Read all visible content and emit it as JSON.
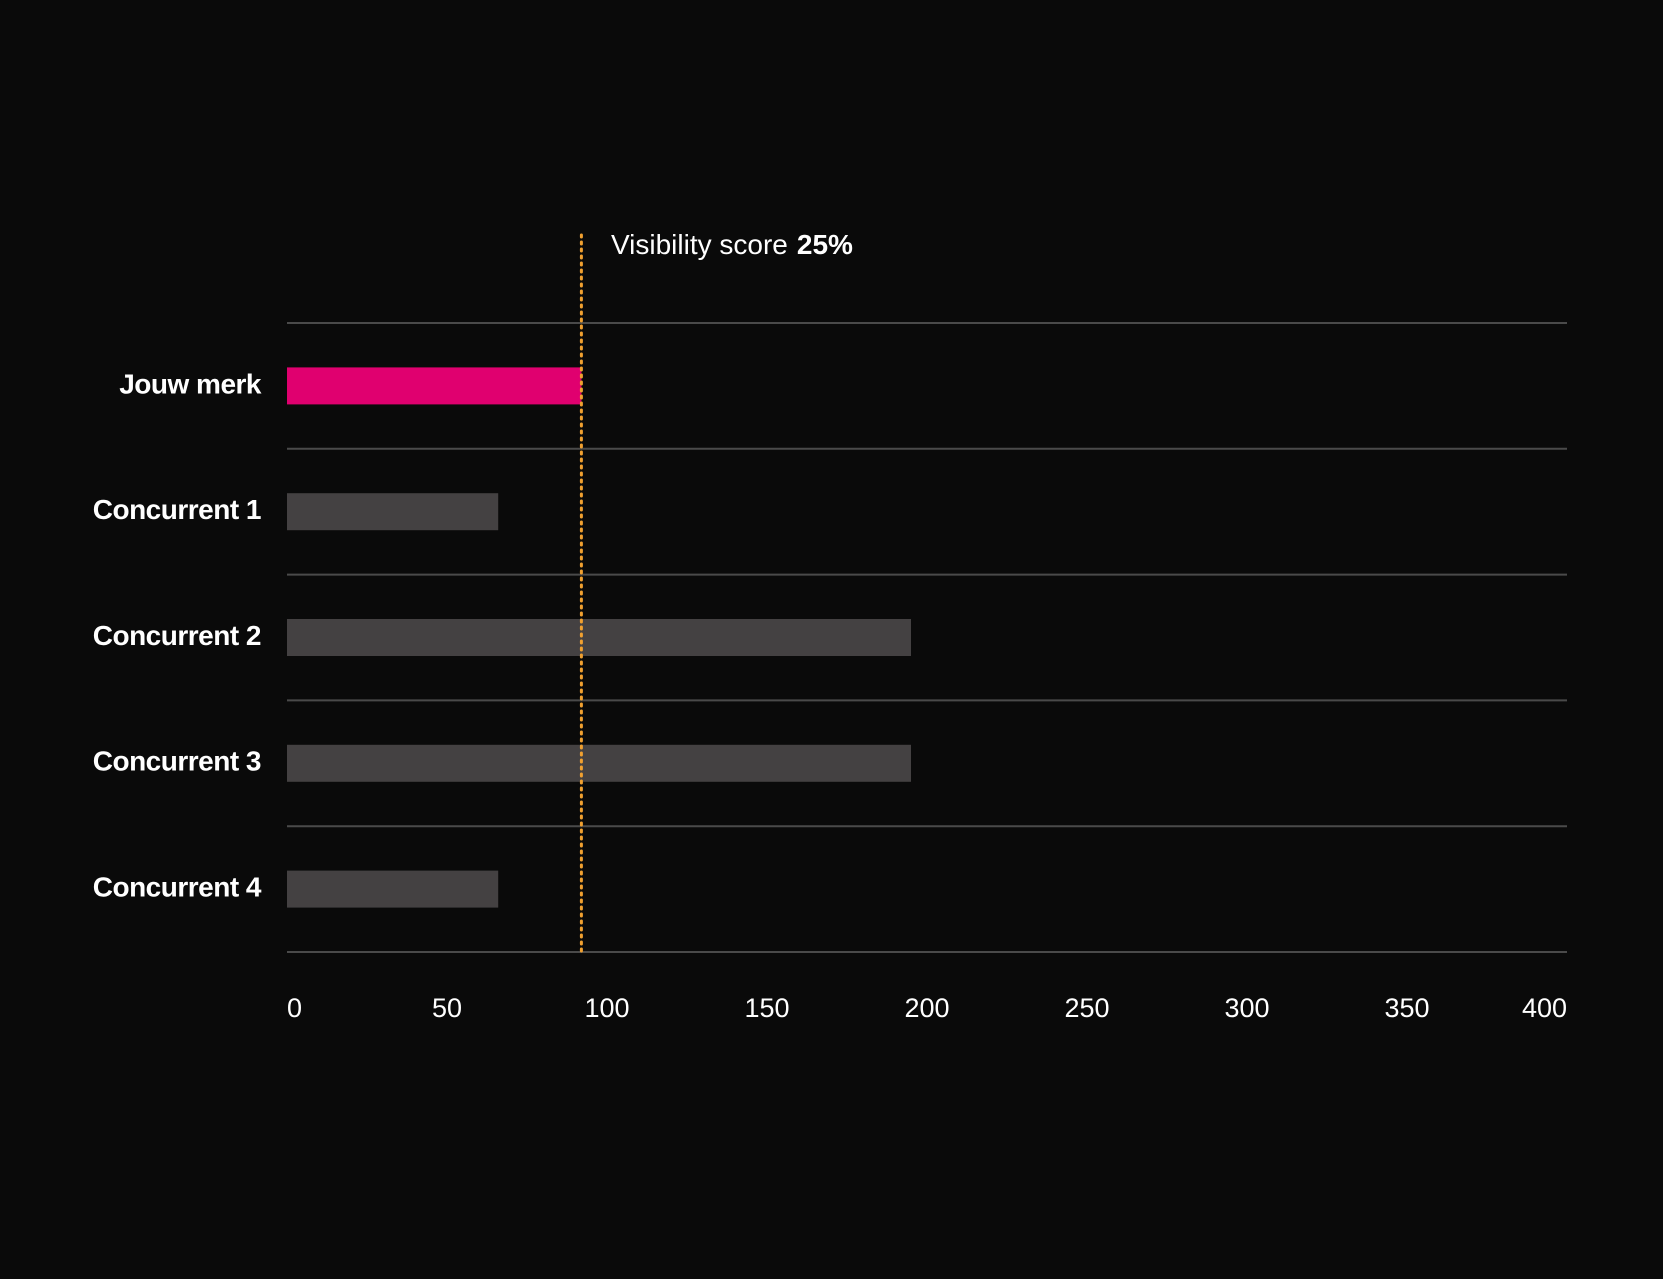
{
  "chart_data": {
    "type": "bar",
    "orientation": "horizontal",
    "categories": [
      "Jouw merk",
      "Concurrent 1",
      "Concurrent 2",
      "Concurrent 3",
      "Concurrent 4"
    ],
    "values": [
      92,
      66,
      195,
      195,
      66
    ],
    "colors": [
      "#e0006f",
      "#444142",
      "#444142",
      "#444142",
      "#444142"
    ],
    "xlim": [
      0,
      400
    ],
    "xticks": [
      0,
      50,
      100,
      150,
      200,
      250,
      300,
      350,
      400
    ],
    "grid": true,
    "reference_line": {
      "value": 92,
      "color": "#f0a030",
      "label": "Visibility score",
      "score": "25%"
    }
  }
}
